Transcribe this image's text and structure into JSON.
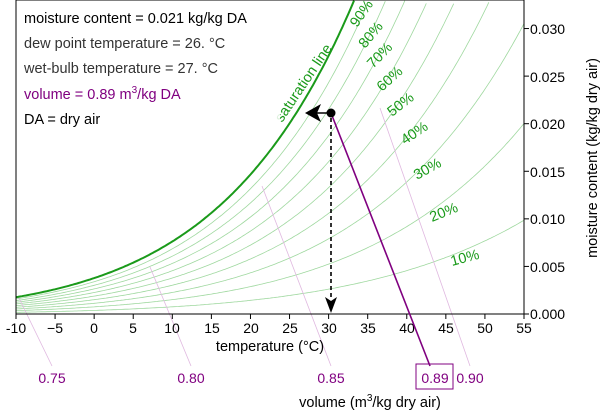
{
  "chart_data": {
    "type": "psychrometric",
    "annotations": {
      "moisture": "moisture content = 0.021 kg/kg DA",
      "dewpoint": "dew point temperature = 26. °C",
      "wetbulb": "wet-bulb temperature = 27. °C",
      "volume_prefix": "volume = 0.89 m",
      "volume_sup": "3",
      "volume_suffix": "/kg DA",
      "da": "DA = dry air"
    },
    "saturation_label": "saturation line",
    "x_axis": {
      "label": "temperature (°C)",
      "ticks": [
        "-10",
        "−5",
        "0",
        "5",
        "10",
        "15",
        "20",
        "25",
        "30",
        "35",
        "40",
        "45",
        "50",
        "55"
      ],
      "range": [
        -10,
        55
      ]
    },
    "y_axis": {
      "label": "moisture content (kg/kg dry air)",
      "ticks": [
        "0.000",
        "0.005",
        "0.010",
        "0.015",
        "0.020",
        "0.025",
        "0.030"
      ],
      "range": [
        0,
        0.033
      ]
    },
    "volume_axis": {
      "label_prefix": "volume (m",
      "label_sup": "3",
      "label_suffix": "/kg dry air)",
      "ticks": [
        "0.75",
        "0.80",
        "0.85",
        "0.90"
      ],
      "highlight": "0.89"
    },
    "rh_labels": [
      "90%",
      "80%",
      "70%",
      "60%",
      "50%",
      "40%",
      "30%",
      "20%",
      "10%"
    ],
    "point": {
      "temperature": 30.6,
      "moisture": 0.021,
      "volume": 0.89,
      "dew_point": 26,
      "wet_bulb": 27
    },
    "colors": {
      "saturation": "#1a9a1a",
      "rh_curves": "#9fd89f",
      "volume_lines": "#e0b8e0",
      "volume_highlight": "#800080",
      "marker": "#000000"
    }
  }
}
